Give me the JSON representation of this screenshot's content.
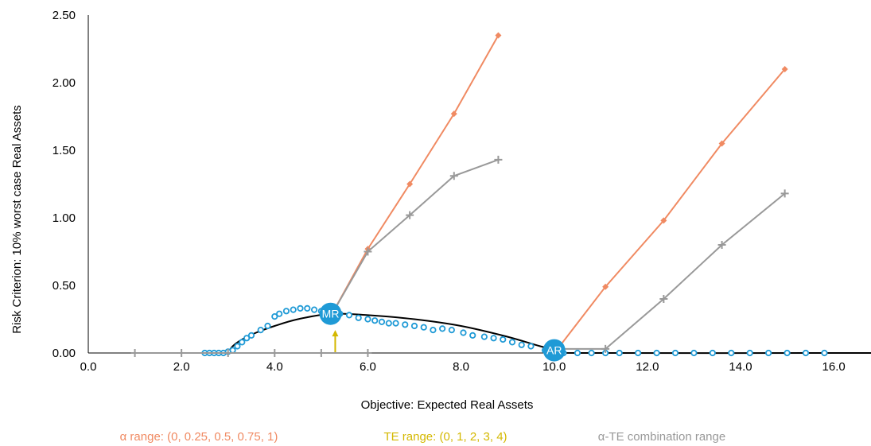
{
  "chart_data": {
    "type": "line",
    "xlabel": "Objective: Expected Real Assets",
    "ylabel": "Risk Criterion: 10% worst case Real Assets",
    "xlim": [
      0,
      16.8
    ],
    "ylim": [
      0,
      2.5
    ],
    "x_ticks": [
      "0.0",
      "2.0",
      "4.0",
      "6.0",
      "8.0",
      "10.0",
      "12.0",
      "14.0",
      "16.0"
    ],
    "y_ticks": [
      "0.00",
      "0.50",
      "1.00",
      "1.50",
      "2.00",
      "2.50"
    ],
    "grid": false,
    "legend_position": "bottom",
    "frontier": {
      "color": "#000000",
      "points": [
        [
          3.0,
          0.0
        ],
        [
          3.1,
          0.05
        ],
        [
          3.3,
          0.1
        ],
        [
          3.6,
          0.15
        ],
        [
          4.0,
          0.2
        ],
        [
          4.5,
          0.25
        ],
        [
          5.2,
          0.29
        ],
        [
          6.0,
          0.28
        ],
        [
          7.0,
          0.25
        ],
        [
          8.0,
          0.2
        ],
        [
          9.0,
          0.12
        ],
        [
          9.7,
          0.05
        ],
        [
          10.2,
          0.01
        ],
        [
          10.6,
          0.0
        ],
        [
          16.8,
          0.0
        ]
      ]
    },
    "dotted_series": {
      "color": "#1f9ad6",
      "points": [
        [
          2.5,
          0.0
        ],
        [
          2.6,
          0.0
        ],
        [
          2.7,
          0.0
        ],
        [
          2.8,
          0.0
        ],
        [
          2.9,
          0.0
        ],
        [
          3.0,
          0.01
        ],
        [
          3.1,
          0.02
        ],
        [
          3.2,
          0.05
        ],
        [
          3.3,
          0.08
        ],
        [
          3.4,
          0.11
        ],
        [
          3.5,
          0.13
        ],
        [
          3.7,
          0.17
        ],
        [
          3.85,
          0.2
        ],
        [
          4.0,
          0.27
        ],
        [
          4.1,
          0.29
        ],
        [
          4.25,
          0.31
        ],
        [
          4.4,
          0.32
        ],
        [
          4.55,
          0.33
        ],
        [
          4.7,
          0.33
        ],
        [
          4.85,
          0.32
        ],
        [
          5.0,
          0.31
        ],
        [
          5.2,
          0.3
        ],
        [
          5.4,
          0.29
        ],
        [
          5.6,
          0.28
        ],
        [
          5.8,
          0.26
        ],
        [
          6.0,
          0.25
        ],
        [
          6.15,
          0.24
        ],
        [
          6.3,
          0.23
        ],
        [
          6.45,
          0.22
        ],
        [
          6.6,
          0.22
        ],
        [
          6.8,
          0.21
        ],
        [
          7.0,
          0.2
        ],
        [
          7.2,
          0.19
        ],
        [
          7.4,
          0.17
        ],
        [
          7.6,
          0.18
        ],
        [
          7.8,
          0.17
        ],
        [
          8.05,
          0.15
        ],
        [
          8.25,
          0.13
        ],
        [
          8.5,
          0.12
        ],
        [
          8.7,
          0.11
        ],
        [
          8.9,
          0.1
        ],
        [
          9.1,
          0.08
        ],
        [
          9.3,
          0.06
        ],
        [
          9.5,
          0.05
        ],
        [
          9.8,
          0.02
        ],
        [
          10.2,
          0.0
        ],
        [
          10.5,
          0.0
        ],
        [
          10.8,
          0.0
        ],
        [
          11.1,
          0.0
        ],
        [
          11.4,
          0.0
        ],
        [
          11.8,
          0.0
        ],
        [
          12.2,
          0.0
        ],
        [
          12.6,
          0.0
        ],
        [
          13.0,
          0.0
        ],
        [
          13.4,
          0.0
        ],
        [
          13.8,
          0.0
        ],
        [
          14.2,
          0.0
        ],
        [
          14.6,
          0.0
        ],
        [
          15.0,
          0.0
        ],
        [
          15.4,
          0.0
        ],
        [
          15.8,
          0.0
        ]
      ]
    },
    "series": [
      {
        "name": "α range: (0, 0.25, 0.5, 0.75, 1)",
        "color": "#f08a62",
        "marker": "diamond",
        "points": [
          [
            5.25,
            0.3
          ],
          [
            6.0,
            0.77
          ],
          [
            6.9,
            1.25
          ],
          [
            7.85,
            1.77
          ],
          [
            8.8,
            2.35
          ]
        ]
      },
      {
        "name": "α range: (0, 0.25, 0.5, 0.75, 1)",
        "color": "#f08a62",
        "marker": "diamond",
        "points": [
          [
            10.05,
            0.02
          ],
          [
            11.1,
            0.49
          ],
          [
            12.35,
            0.98
          ],
          [
            13.6,
            1.55
          ],
          [
            14.95,
            2.1
          ]
        ]
      },
      {
        "name": "TE range: (0, 1, 2, 3, 4)",
        "color": "#d4b800",
        "marker": "arrow",
        "points": [
          [
            5.3,
            0.0
          ],
          [
            5.3,
            0.17
          ]
        ]
      },
      {
        "name": "α-TE combination range",
        "color": "#999999",
        "marker": "plus",
        "points": [
          [
            5.25,
            0.3
          ],
          [
            6.0,
            0.75
          ],
          [
            6.9,
            1.02
          ],
          [
            7.85,
            1.31
          ],
          [
            8.8,
            1.43
          ]
        ]
      },
      {
        "name": "α-TE combination range",
        "color": "#999999",
        "marker": "plus",
        "points": [
          [
            10.05,
            0.03
          ],
          [
            11.1,
            0.03
          ],
          [
            12.35,
            0.4
          ],
          [
            13.6,
            0.8
          ],
          [
            14.95,
            1.18
          ]
        ]
      },
      {
        "name": "α-TE combination range",
        "color": "#999999",
        "marker": "plus",
        "points": [
          [
            1.0,
            0.0
          ],
          [
            2.0,
            0.0
          ],
          [
            3.0,
            0.0
          ],
          [
            4.0,
            0.0
          ],
          [
            5.0,
            0.0
          ],
          [
            6.0,
            0.0
          ]
        ]
      }
    ],
    "annotations": [
      {
        "text": "MR",
        "x": 5.2,
        "y": 0.29,
        "color": "#1f9ad6"
      },
      {
        "text": "AR",
        "x": 10.0,
        "y": 0.02,
        "color": "#1f9ad6"
      }
    ],
    "legend": [
      {
        "label": "α range: (0, 0.25, 0.5, 0.75, 1)",
        "color": "#f08a62"
      },
      {
        "label": "TE range: (0, 1, 2, 3, 4)",
        "color": "#d4b800"
      },
      {
        "label": "α-TE combination range",
        "color": "#999999"
      }
    ]
  }
}
